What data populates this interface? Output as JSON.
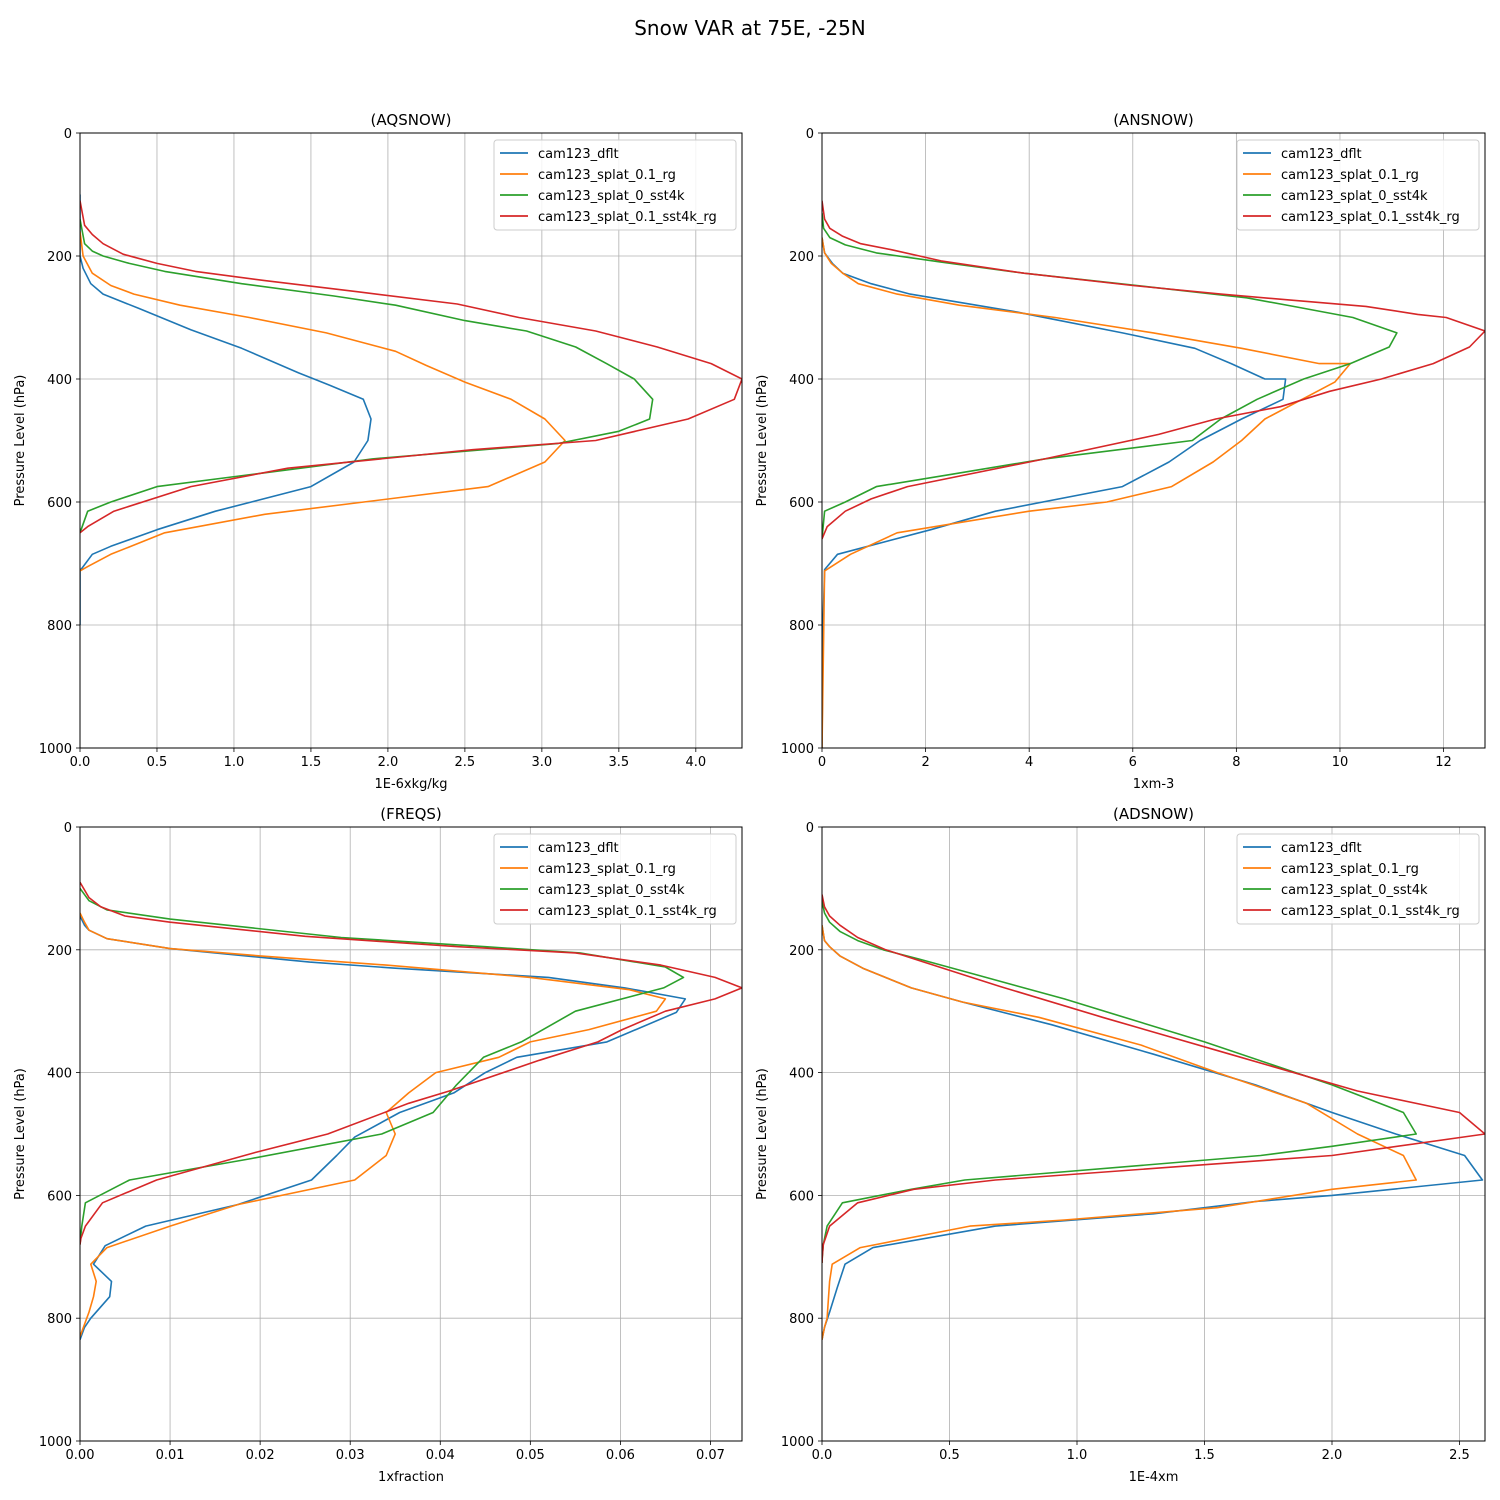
{
  "figure_title": "Snow VAR at 75E, -25N",
  "colors": {
    "cam123_dflt": "#1f77b4",
    "cam123_splat_0.1_rg": "#ff7f0e",
    "cam123_splat_0_sst4k": "#2ca02c",
    "cam123_splat_0.1_sst4k_rg": "#d62728",
    "grid": "#b0b0b0"
  },
  "chart_data": [
    {
      "type": "line",
      "title": "(AQSNOW)",
      "xlabel": "1E-6xkg/kg",
      "ylabel": "Pressure Level (hPa)",
      "xlim": [
        0,
        4.3
      ],
      "ylim": [
        1000,
        0
      ],
      "xticks": [
        0,
        0.5,
        1,
        1.5,
        2,
        2.5,
        3,
        3.5,
        4
      ],
      "xtick_labels": [
        "0.0",
        "0.5",
        "1.0",
        "1.5",
        "2.0",
        "2.5",
        "3.0",
        "3.5",
        "4.0"
      ],
      "yticks": [
        0,
        200,
        400,
        600,
        800,
        1000
      ],
      "ytick_labels": [
        "0",
        "200",
        "400",
        "600",
        "800",
        "1000"
      ],
      "grid": true,
      "legend_position": "top-right",
      "series": [
        {
          "name": "cam123_dflt",
          "x": [
            0,
            0,
            0.02,
            0.07,
            0.15,
            0.38,
            0.72,
            1.05,
            1.42,
            1.62,
            1.84,
            1.89,
            1.87,
            1.78,
            1.5,
            0.88,
            0.5,
            0.2,
            0.08,
            0,
            0,
            0
          ],
          "y": [
            100,
            200,
            220,
            245,
            262,
            285,
            320,
            350,
            390,
            410,
            433,
            465,
            500,
            535,
            575,
            615,
            645,
            672,
            685,
            712,
            760,
            800
          ]
        },
        {
          "name": "cam123_splat_0.1_rg",
          "x": [
            0,
            0.02,
            0.08,
            0.2,
            0.35,
            0.65,
            1.1,
            1.6,
            2.05,
            2.25,
            2.5,
            2.8,
            3.02,
            3.15,
            3.02,
            2.65,
            1.2,
            0.55,
            0.2,
            0.05,
            0
          ],
          "y": [
            160,
            200,
            228,
            248,
            262,
            280,
            300,
            325,
            355,
            378,
            405,
            433,
            465,
            500,
            535,
            575,
            620,
            650,
            685,
            705,
            712
          ]
        },
        {
          "name": "cam123_splat_0_sst4k",
          "x": [
            0,
            0.03,
            0.08,
            0.15,
            0.32,
            0.55,
            1.05,
            1.65,
            2.05,
            2.5,
            2.9,
            3.22,
            3.42,
            3.6,
            3.72,
            3.7,
            3.5,
            3.1,
            1.9,
            0.5,
            0.2,
            0.05,
            0
          ],
          "y": [
            140,
            180,
            192,
            200,
            212,
            225,
            245,
            265,
            280,
            305,
            322,
            348,
            375,
            400,
            433,
            465,
            485,
            505,
            530,
            575,
            600,
            615,
            650
          ]
        },
        {
          "name": "cam123_splat_0.1_sst4k_rg",
          "x": [
            0,
            0.03,
            0.08,
            0.15,
            0.28,
            0.5,
            0.75,
            1.2,
            1.8,
            2.45,
            2.85,
            3.35,
            3.75,
            4.1,
            4.3,
            4.25,
            3.95,
            3.35,
            2.55,
            1.35,
            0.72,
            0.22,
            0.05,
            0
          ],
          "y": [
            110,
            150,
            165,
            180,
            197,
            212,
            225,
            240,
            258,
            278,
            300,
            322,
            348,
            375,
            400,
            433,
            465,
            500,
            515,
            545,
            575,
            615,
            640,
            650
          ]
        }
      ]
    },
    {
      "type": "line",
      "title": "(ANSNOW)",
      "xlabel": "1xm-3",
      "ylabel": "Pressure Level (hPa)",
      "xlim": [
        0,
        12.8
      ],
      "ylim": [
        1000,
        0
      ],
      "xticks": [
        0,
        2,
        4,
        6,
        8,
        10,
        12
      ],
      "xtick_labels": [
        "0",
        "2",
        "4",
        "6",
        "8",
        "10",
        "12"
      ],
      "yticks": [
        0,
        200,
        400,
        600,
        800,
        1000
      ],
      "ytick_labels": [
        "0",
        "200",
        "400",
        "600",
        "800",
        "1000"
      ],
      "grid": true,
      "legend_position": "top-right",
      "series": [
        {
          "name": "cam123_dflt",
          "x": [
            0,
            0.05,
            0.2,
            0.4,
            0.95,
            1.7,
            3.7,
            5.8,
            7.2,
            7.9,
            8.55,
            8.95,
            8.9,
            8.1,
            7.3,
            6.7,
            5.8,
            3.35,
            2.1,
            0.3,
            0.05,
            0.02,
            0
          ],
          "y": [
            170,
            195,
            212,
            228,
            245,
            262,
            290,
            325,
            350,
            375,
            400,
            400,
            433,
            465,
            500,
            535,
            575,
            615,
            645,
            685,
            710,
            800,
            1000
          ]
        },
        {
          "name": "cam123_splat_0.1_rg",
          "x": [
            0,
            0.05,
            0.18,
            0.4,
            0.7,
            1.45,
            2.65,
            4.5,
            6.4,
            8.1,
            9.6,
            10.2,
            9.9,
            8.55,
            8.1,
            7.55,
            6.75,
            5.5,
            4.0,
            1.45,
            0.55,
            0.05,
            0
          ],
          "y": [
            170,
            195,
            212,
            228,
            245,
            262,
            280,
            300,
            325,
            350,
            375,
            375,
            405,
            465,
            500,
            535,
            575,
            600,
            615,
            650,
            685,
            712,
            1000
          ]
        },
        {
          "name": "cam123_splat_0_sst4k",
          "x": [
            0,
            0.03,
            0.15,
            0.45,
            1.05,
            2.3,
            3.9,
            6.3,
            8.2,
            9.1,
            10.25,
            11.1,
            10.95,
            10.2,
            9.3,
            8.4,
            7.7,
            7.15,
            4.3,
            2.5,
            1.05,
            0.45,
            0.05,
            0
          ],
          "y": [
            130,
            155,
            170,
            182,
            195,
            210,
            228,
            250,
            268,
            282,
            300,
            325,
            348,
            375,
            400,
            433,
            465,
            500,
            530,
            555,
            575,
            600,
            615,
            660
          ]
        },
        {
          "name": "cam123_splat_0.1_sst4k_rg",
          "x": [
            0,
            0.05,
            0.15,
            0.4,
            0.75,
            1.35,
            2.3,
            3.9,
            6.0,
            7.7,
            9.1,
            10.5,
            11.5,
            12.05,
            12.8,
            12.5,
            11.8,
            10.8,
            9.8,
            8.85,
            7.6,
            6.5,
            4.3,
            1.65,
            0.95,
            0.45,
            0.1,
            0
          ],
          "y": [
            110,
            140,
            155,
            168,
            180,
            190,
            208,
            228,
            248,
            262,
            272,
            282,
            295,
            300,
            322,
            348,
            375,
            400,
            420,
            445,
            465,
            490,
            530,
            575,
            595,
            615,
            640,
            660
          ]
        }
      ]
    },
    {
      "type": "line",
      "title": "(FREQS)",
      "xlabel": "1xfraction",
      "ylabel": "Pressure Level (hPa)",
      "xlim": [
        0,
        0.0735
      ],
      "ylim": [
        1000,
        0
      ],
      "xticks": [
        0,
        0.01,
        0.02,
        0.03,
        0.04,
        0.05,
        0.06,
        0.07
      ],
      "xtick_labels": [
        "0.00",
        "0.01",
        "0.02",
        "0.03",
        "0.04",
        "0.05",
        "0.06",
        "0.07"
      ],
      "yticks": [
        0,
        200,
        400,
        600,
        800,
        1000
      ],
      "ytick_labels": [
        "0",
        "200",
        "400",
        "600",
        "800",
        "1000"
      ],
      "grid": true,
      "legend_position": "top-right",
      "series": [
        {
          "name": "cam123_dflt",
          "x": [
            0,
            0.0005,
            0.001,
            0.003,
            0.01,
            0.0255,
            0.035,
            0.052,
            0.0605,
            0.0672,
            0.0662,
            0.0585,
            0.0485,
            0.045,
            0.0415,
            0.0355,
            0.0305,
            0.0285,
            0.0257,
            0.0175,
            0.0073,
            0.0028,
            0.0015,
            0.0035,
            0.0033,
            0.0012,
            0.0005,
            0
          ],
          "y": [
            145,
            160,
            168,
            182,
            198,
            220,
            230,
            245,
            262,
            280,
            302,
            350,
            375,
            400,
            433,
            465,
            505,
            535,
            575,
            615,
            650,
            682,
            712,
            740,
            765,
            800,
            815,
            835
          ]
        },
        {
          "name": "cam123_splat_0.1_rg",
          "x": [
            0,
            0.0005,
            0.001,
            0.003,
            0.01,
            0.02,
            0.034,
            0.05,
            0.061,
            0.065,
            0.064,
            0.0565,
            0.05,
            0.0465,
            0.0395,
            0.0365,
            0.034,
            0.035,
            0.034,
            0.0305,
            0.0175,
            0.01,
            0.003,
            0.0012,
            0.0018,
            0.0015,
            0.001,
            0
          ],
          "y": [
            140,
            155,
            168,
            182,
            198,
            210,
            225,
            245,
            265,
            280,
            300,
            330,
            350,
            375,
            400,
            433,
            465,
            500,
            535,
            575,
            615,
            650,
            685,
            712,
            740,
            765,
            790,
            830
          ]
        },
        {
          "name": "cam123_splat_0_sst4k",
          "x": [
            0,
            0.001,
            0.003,
            0.01,
            0.029,
            0.045,
            0.0555,
            0.065,
            0.067,
            0.0648,
            0.055,
            0.049,
            0.0448,
            0.0418,
            0.0392,
            0.0335,
            0.019,
            0.0055,
            0.0006,
            0.0002,
            0
          ],
          "y": [
            100,
            120,
            135,
            150,
            180,
            195,
            205,
            228,
            245,
            262,
            300,
            350,
            375,
            420,
            465,
            500,
            540,
            575,
            612,
            650,
            680
          ]
        },
        {
          "name": "cam123_splat_0.1_sst4k_rg",
          "x": [
            0,
            0.001,
            0.0023,
            0.005,
            0.01,
            0.025,
            0.042,
            0.055,
            0.0645,
            0.0705,
            0.0735,
            0.0705,
            0.065,
            0.0602,
            0.0575,
            0.051,
            0.041,
            0.0365,
            0.0275,
            0.0195,
            0.0085,
            0.0025,
            0.0006,
            0.0001,
            0
          ],
          "y": [
            90,
            115,
            130,
            145,
            155,
            178,
            195,
            205,
            225,
            245,
            262,
            280,
            300,
            330,
            350,
            380,
            430,
            450,
            500,
            530,
            575,
            612,
            650,
            670,
            680
          ]
        }
      ]
    },
    {
      "type": "line",
      "title": "(ADSNOW)",
      "xlabel": "1E-4xm",
      "ylabel": "Pressure Level (hPa)",
      "xlim": [
        0,
        2.6
      ],
      "ylim": [
        1000,
        0
      ],
      "xticks": [
        0,
        0.5,
        1,
        1.5,
        2,
        2.5
      ],
      "xtick_labels": [
        "0.0",
        "0.5",
        "1.0",
        "1.5",
        "2.0",
        "2.5"
      ],
      "yticks": [
        0,
        200,
        400,
        600,
        800,
        1000
      ],
      "ytick_labels": [
        "0",
        "200",
        "400",
        "600",
        "800",
        "1000"
      ],
      "grid": true,
      "legend_position": "top-right",
      "series": [
        {
          "name": "cam123_dflt",
          "x": [
            0,
            0.01,
            0.03,
            0.07,
            0.16,
            0.35,
            0.55,
            0.9,
            1.3,
            1.7,
            2.0,
            2.25,
            2.52,
            2.59,
            2.0,
            1.7,
            1.3,
            0.68,
            0.2,
            0.09,
            0.06,
            0.03,
            0.01,
            0
          ],
          "y": [
            160,
            185,
            195,
            210,
            230,
            262,
            285,
            322,
            370,
            420,
            465,
            500,
            535,
            575,
            600,
            610,
            630,
            650,
            685,
            712,
            750,
            790,
            815,
            835
          ]
        },
        {
          "name": "cam123_splat_0.1_rg",
          "x": [
            0,
            0.01,
            0.03,
            0.07,
            0.16,
            0.35,
            0.55,
            0.85,
            1.25,
            1.55,
            1.9,
            2.1,
            2.28,
            2.33,
            2.0,
            1.55,
            0.95,
            0.58,
            0.15,
            0.04,
            0.03,
            0.02,
            0.01,
            0
          ],
          "y": [
            160,
            185,
            195,
            210,
            230,
            262,
            285,
            310,
            355,
            400,
            450,
            500,
            535,
            575,
            590,
            620,
            640,
            650,
            685,
            712,
            740,
            800,
            815,
            835
          ]
        },
        {
          "name": "cam123_splat_0_sst4k",
          "x": [
            0,
            0.01,
            0.03,
            0.07,
            0.14,
            0.24,
            0.38,
            0.6,
            0.95,
            1.5,
            2.0,
            2.28,
            2.33,
            2.0,
            1.72,
            0.56,
            0.35,
            0.08,
            0.02,
            0.005,
            0.001,
            0
          ],
          "y": [
            120,
            140,
            155,
            170,
            185,
            200,
            215,
            240,
            280,
            350,
            420,
            465,
            500,
            520,
            535,
            575,
            590,
            612,
            650,
            680,
            700,
            710
          ]
        },
        {
          "name": "cam123_splat_0.1_sst4k_rg",
          "x": [
            0,
            0.01,
            0.03,
            0.07,
            0.14,
            0.25,
            0.4,
            0.7,
            1.1,
            1.6,
            2.1,
            2.5,
            2.6,
            2.0,
            1.5,
            0.68,
            0.36,
            0.14,
            0.03,
            0.005,
            0.001,
            0
          ],
          "y": [
            110,
            130,
            145,
            160,
            180,
            200,
            220,
            260,
            310,
            370,
            430,
            465,
            500,
            535,
            550,
            575,
            590,
            612,
            650,
            680,
            700,
            710
          ]
        }
      ]
    }
  ]
}
